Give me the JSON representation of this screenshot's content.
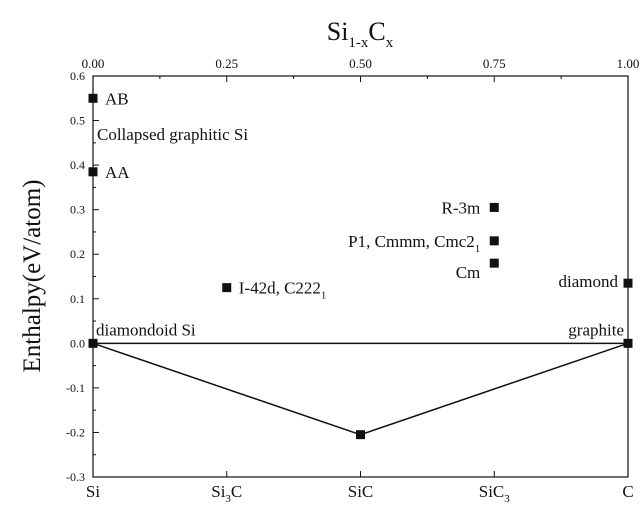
{
  "chart_data": {
    "type": "scatter",
    "title": "",
    "top_axis": {
      "label_base": "Si",
      "label_sub1": "1-x",
      "label_mid": "C",
      "label_sub2": "x",
      "ticks": [
        "0.00",
        "0.25",
        "0.50",
        "0.75",
        "1.00"
      ],
      "tick_values": [
        0.0,
        0.25,
        0.5,
        0.75,
        1.0
      ]
    },
    "bottom_axis": {
      "ticks": [
        {
          "x": 0.0,
          "base": "Si",
          "sub": ""
        },
        {
          "x": 0.25,
          "base": "Si",
          "sub": "3",
          "tail": "C"
        },
        {
          "x": 0.5,
          "base": "SiC",
          "sub": ""
        },
        {
          "x": 0.75,
          "base": "SiC",
          "sub": "3"
        },
        {
          "x": 1.0,
          "base": "C",
          "sub": ""
        }
      ]
    },
    "ylabel": "Enthalpy(eV/atom)",
    "xlim": [
      0.0,
      1.0
    ],
    "ylim": [
      -0.3,
      0.6
    ],
    "yticks": [
      "-0.3",
      "-0.2",
      "-0.1",
      "0.0",
      "0.1",
      "0.2",
      "0.3",
      "0.4",
      "0.5",
      "0.6"
    ],
    "ytick_values": [
      -0.3,
      -0.2,
      -0.1,
      0.0,
      0.1,
      0.2,
      0.3,
      0.4,
      0.5,
      0.6
    ],
    "points": [
      {
        "x": 0.0,
        "y": 0.55
      },
      {
        "x": 0.0,
        "y": 0.385
      },
      {
        "x": 0.0,
        "y": 0.0
      },
      {
        "x": 0.25,
        "y": 0.125
      },
      {
        "x": 0.5,
        "y": -0.205
      },
      {
        "x": 0.75,
        "y": 0.305
      },
      {
        "x": 0.75,
        "y": 0.23
      },
      {
        "x": 0.75,
        "y": 0.18
      },
      {
        "x": 1.0,
        "y": 0.135
      },
      {
        "x": 1.0,
        "y": 0.0
      }
    ],
    "hull": [
      {
        "x": 0.0,
        "y": 0.0
      },
      {
        "x": 0.5,
        "y": -0.205
      },
      {
        "x": 1.0,
        "y": 0.0
      }
    ],
    "reference_line_y": 0.0,
    "annotations": [
      {
        "text": "AB",
        "x": 0.0,
        "y": 0.55
      },
      {
        "text": "Collapsed graphitic Si",
        "x": 0.0,
        "y": 0.47
      },
      {
        "text": "AA",
        "x": 0.0,
        "y": 0.385
      },
      {
        "text": "diamondoid Si",
        "x": 0.0,
        "y": 0.0
      },
      {
        "text": "I-42d, C222",
        "sub": "1",
        "x": 0.25,
        "y": 0.125
      },
      {
        "text": "R-3m",
        "x": 0.75,
        "y": 0.305
      },
      {
        "text": "P1, Cmmm, Cmc2",
        "sub": "1",
        "x": 0.75,
        "y": 0.23
      },
      {
        "text": "Cm",
        "x": 0.75,
        "y": 0.18
      },
      {
        "text": "diamond",
        "x": 1.0,
        "y": 0.135
      },
      {
        "text": "graphite",
        "x": 1.0,
        "y": 0.0
      }
    ],
    "grid": false,
    "legend": "none"
  }
}
